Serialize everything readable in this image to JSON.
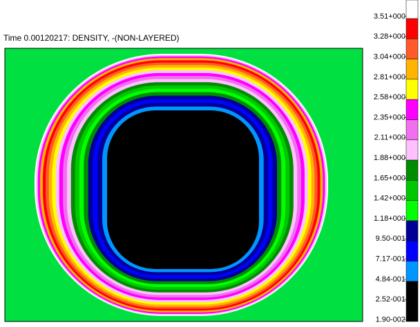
{
  "chart_data": {
    "type": "contour",
    "title": "Time 0.00120217: DENSITY, -(NON-LAYERED)",
    "colorbar_ticks": [
      {
        "value": 3.51,
        "label": "3.51+000"
      },
      {
        "value": 3.28,
        "label": "3.28+000"
      },
      {
        "value": 3.04,
        "label": "3.04+000"
      },
      {
        "value": 2.81,
        "label": "2.81+000"
      },
      {
        "value": 2.58,
        "label": "2.58+000"
      },
      {
        "value": 2.35,
        "label": "2.35+000"
      },
      {
        "value": 2.11,
        "label": "2.11+000"
      },
      {
        "value": 1.88,
        "label": "1.88+000"
      },
      {
        "value": 1.65,
        "label": "1.65+000"
      },
      {
        "value": 1.42,
        "label": "1.42+000"
      },
      {
        "value": 1.18,
        "label": "1.18+000"
      },
      {
        "value": 0.95,
        "label": "9.50-001"
      },
      {
        "value": 0.717,
        "label": "7.17-001"
      },
      {
        "value": 0.484,
        "label": "4.84-001"
      },
      {
        "value": 0.252,
        "label": "2.52-001"
      },
      {
        "value": 0.019,
        "label": "1.90-002"
      }
    ],
    "colors": [
      "#ffffff",
      "#ff0000",
      "#ff5a28",
      "#ffb400",
      "#ffff00",
      "#ff00ff",
      "#f070f0",
      "#ffc0ff",
      "#008c00",
      "#00c800",
      "#00ff00",
      "#000096",
      "#0000ff",
      "#0096ff",
      "#000000"
    ],
    "background_color": "#00e040"
  }
}
